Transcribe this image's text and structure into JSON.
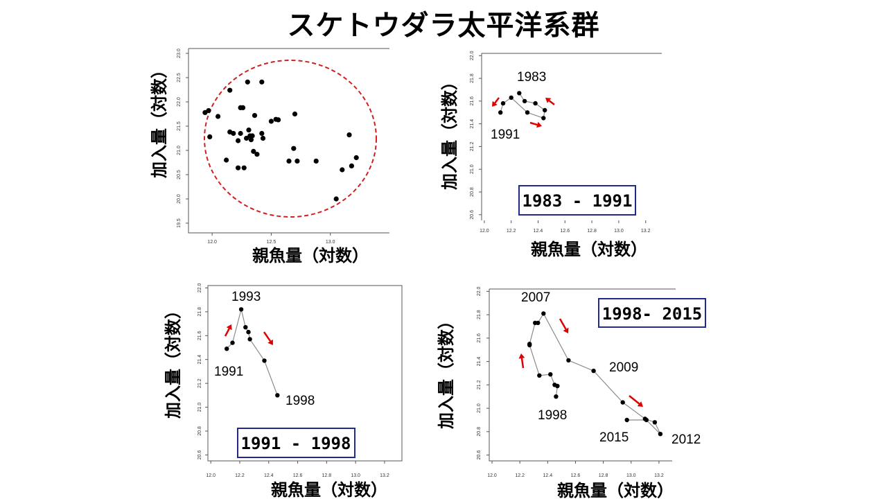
{
  "title": "スケトウダラ太平洋系群",
  "colors": {
    "ellipse": "#d11f1f",
    "arrow": "#e00000",
    "box": "#1f2a8a",
    "point": "#000000",
    "line": "#8a8a8a"
  },
  "chart_data": [
    {
      "type": "scatter",
      "xlabel": "親魚量（対数）",
      "ylabel": "加入量（対数）",
      "xlim": [
        11.8,
        13.5
      ],
      "ylim": [
        19.3,
        23.1
      ],
      "xticks": [
        "12.0",
        "12.5",
        "13.0"
      ],
      "yticks": [
        "19.5",
        "20.0",
        "20.5",
        "21.0",
        "21.5",
        "22.0",
        "22.5",
        "23.0"
      ],
      "annotation": "dashed ellipse enclosing all points",
      "points": [
        [
          11.94,
          21.78
        ],
        [
          11.97,
          21.82
        ],
        [
          11.98,
          21.28
        ],
        [
          12.05,
          21.7
        ],
        [
          12.12,
          20.8
        ],
        [
          12.15,
          22.24
        ],
        [
          12.15,
          21.38
        ],
        [
          12.18,
          21.35
        ],
        [
          12.22,
          21.2
        ],
        [
          12.22,
          20.64
        ],
        [
          12.24,
          21.88
        ],
        [
          12.24,
          21.35
        ],
        [
          12.26,
          21.88
        ],
        [
          12.27,
          20.64
        ],
        [
          12.29,
          21.25
        ],
        [
          12.3,
          22.41
        ],
        [
          12.31,
          21.42
        ],
        [
          12.32,
          21.3
        ],
        [
          12.33,
          21.22
        ],
        [
          12.34,
          21.3
        ],
        [
          12.35,
          20.98
        ],
        [
          12.36,
          21.72
        ],
        [
          12.38,
          20.92
        ],
        [
          12.42,
          21.35
        ],
        [
          12.43,
          21.25
        ],
        [
          12.42,
          22.41
        ],
        [
          12.5,
          21.6
        ],
        [
          12.54,
          21.64
        ],
        [
          12.56,
          21.63
        ],
        [
          12.65,
          20.78
        ],
        [
          12.69,
          21.04
        ],
        [
          12.7,
          21.75
        ],
        [
          12.72,
          20.78
        ],
        [
          12.88,
          20.78
        ],
        [
          13.05,
          20.0
        ],
        [
          13.1,
          20.6
        ],
        [
          13.16,
          21.32
        ],
        [
          13.18,
          20.68
        ],
        [
          13.22,
          20.85
        ]
      ]
    },
    {
      "type": "line",
      "xlabel": "親魚量（対数）",
      "ylabel": "加入量（対数）",
      "xlim": [
        11.98,
        13.32
      ],
      "ylim": [
        20.55,
        22.02
      ],
      "xticks": [
        "12.0",
        "12.2",
        "12.4",
        "12.6",
        "12.8",
        "13.0",
        "13.2"
      ],
      "yticks": [
        "20.6",
        "20.8",
        "21.0",
        "21.2",
        "21.4",
        "21.6",
        "21.8",
        "22.0"
      ],
      "range_label": "1983 - 1991",
      "year_labels": [
        "1983",
        "1991"
      ],
      "points": [
        [
          12.26,
          21.67
        ],
        [
          12.3,
          21.6
        ],
        [
          12.38,
          21.58
        ],
        [
          12.45,
          21.52
        ],
        [
          12.44,
          21.45
        ],
        [
          12.32,
          21.5
        ],
        [
          12.2,
          21.63
        ],
        [
          12.14,
          21.58
        ],
        [
          12.12,
          21.5
        ]
      ]
    },
    {
      "type": "line",
      "xlabel": "親魚量（対数）",
      "ylabel": "加入量（対数）",
      "xlim": [
        11.98,
        13.32
      ],
      "ylim": [
        20.55,
        22.02
      ],
      "xticks": [
        "12.0",
        "12.2",
        "12.4",
        "12.6",
        "12.8",
        "13.0",
        "13.2"
      ],
      "yticks": [
        "20.6",
        "20.8",
        "21.0",
        "21.2",
        "21.4",
        "21.6",
        "21.8",
        "22.0"
      ],
      "range_label": "1991 - 1998",
      "year_labels": [
        "1993",
        "1991",
        "1998"
      ],
      "points": [
        [
          12.11,
          21.49
        ],
        [
          12.15,
          21.54
        ],
        [
          12.21,
          21.82
        ],
        [
          12.24,
          21.67
        ],
        [
          12.26,
          21.63
        ],
        [
          12.27,
          21.57
        ],
        [
          12.37,
          21.39
        ],
        [
          12.46,
          21.1
        ]
      ]
    },
    {
      "type": "line",
      "xlabel": "親魚量（対数）",
      "ylabel": "加入量（対数）",
      "xlim": [
        11.98,
        13.32
      ],
      "ylim": [
        20.55,
        22.02
      ],
      "xticks": [
        "12.0",
        "12.2",
        "12.4",
        "12.6",
        "12.8",
        "13.0",
        "13.2"
      ],
      "yticks": [
        "20.6",
        "20.8",
        "21.0",
        "21.2",
        "21.4",
        "21.6",
        "21.8",
        "22.0"
      ],
      "range_label": "1998- 2015",
      "year_labels": [
        "2007",
        "2009",
        "1998",
        "2015",
        "2012"
      ],
      "points": [
        [
          12.46,
          21.1
        ],
        [
          12.47,
          21.19
        ],
        [
          12.45,
          21.2
        ],
        [
          12.42,
          21.29
        ],
        [
          12.34,
          21.28
        ],
        [
          12.27,
          21.54
        ],
        [
          12.27,
          21.55
        ],
        [
          12.31,
          21.73
        ],
        [
          12.33,
          21.73
        ],
        [
          12.37,
          21.81
        ],
        [
          12.55,
          21.41
        ],
        [
          12.73,
          21.32
        ],
        [
          12.94,
          21.05
        ],
        [
          13.1,
          20.91
        ],
        [
          13.17,
          20.88
        ],
        [
          13.21,
          20.78
        ],
        [
          13.11,
          20.9
        ],
        [
          12.97,
          20.9
        ]
      ]
    }
  ]
}
